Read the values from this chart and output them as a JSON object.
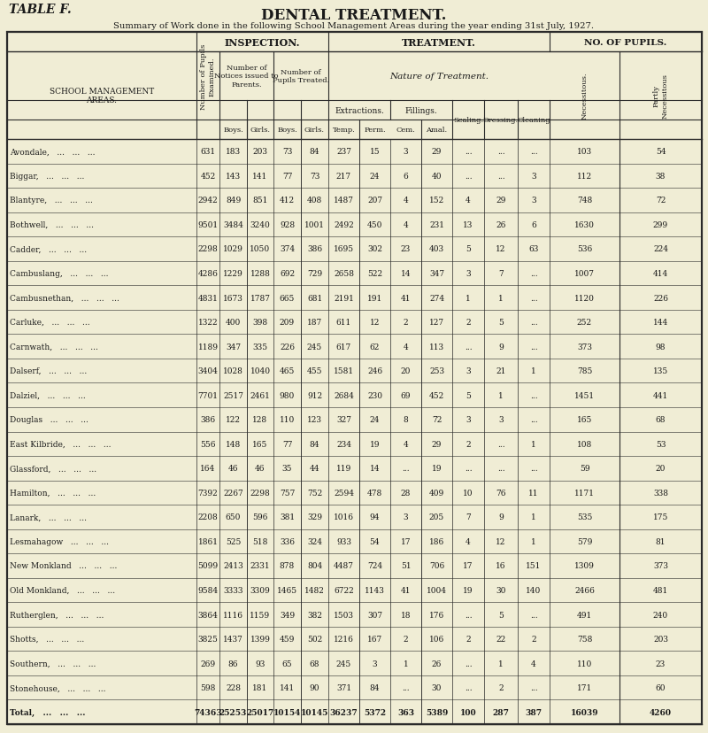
{
  "title1": "TABLE F.",
  "title2": "DENTAL TREATMENT.",
  "subtitle": "Summary of Work done in the following School Management Areas during the year ending 31st July, 1927.",
  "bg_color": "#f0edd5",
  "line_color": "#2a2a2a",
  "rows": [
    [
      "Avondale,   ...   ...   ...",
      "631",
      "183",
      "203",
      "73",
      "84",
      "237",
      "15",
      "3",
      "29",
      "...",
      "...",
      "...",
      "103",
      "54"
    ],
    [
      "Biggar,   ...   ...   ...",
      "452",
      "143",
      "141",
      "77",
      "73",
      "217",
      "24",
      "6",
      "40",
      "...",
      "...",
      "3",
      "112",
      "38"
    ],
    [
      "Blantyre,   ...   ...   ...",
      "2942",
      "849",
      "851",
      "412",
      "408",
      "1487",
      "207",
      "4",
      "152",
      "4",
      "29",
      "3",
      "748",
      "72"
    ],
    [
      "Bothwell,   ...   ...   ...",
      "9501",
      "3484",
      "3240",
      "928",
      "1001",
      "2492",
      "450",
      "4",
      "231",
      "13",
      "26",
      "6",
      "1630",
      "299"
    ],
    [
      "Cadder,   ...   ...   ...",
      "2298",
      "1029",
      "1050",
      "374",
      "386",
      "1695",
      "302",
      "23",
      "403",
      "5",
      "12",
      "63",
      "536",
      "224"
    ],
    [
      "Cambuslang,   ...   ...   ...",
      "4286",
      "1229",
      "1288",
      "692",
      "729",
      "2658",
      "522",
      "14",
      "347",
      "3",
      "7",
      "...",
      "1007",
      "414"
    ],
    [
      "Cambusnethan,   ...   ...   ...",
      "4831",
      "1673",
      "1787",
      "665",
      "681",
      "2191",
      "191",
      "41",
      "274",
      "1",
      "1",
      "...",
      "1120",
      "226"
    ],
    [
      "Carluke,   ...   ...   ...",
      "1322",
      "400",
      "398",
      "209",
      "187",
      "611",
      "12",
      "2",
      "127",
      "2",
      "5",
      "...",
      "252",
      "144"
    ],
    [
      "Carnwath,   ...   ...   ...",
      "1189",
      "347",
      "335",
      "226",
      "245",
      "617",
      "62",
      "4",
      "113",
      "...",
      "9",
      "...",
      "373",
      "98"
    ],
    [
      "Dalserf,   ...   ...   ...",
      "3404",
      "1028",
      "1040",
      "465",
      "455",
      "1581",
      "246",
      "20",
      "253",
      "3",
      "21",
      "1",
      "785",
      "135"
    ],
    [
      "Dalziel,   ...   ...   ...",
      "7701",
      "2517",
      "2461",
      "980",
      "912",
      "2684",
      "230",
      "69",
      "452",
      "5",
      "1",
      "...",
      "1451",
      "441"
    ],
    [
      "Douglas   ...   ...   ...",
      "386",
      "122",
      "128",
      "110",
      "123",
      "327",
      "24",
      "8",
      "72",
      "3",
      "3",
      "...",
      "165",
      "68"
    ],
    [
      "East Kilbride,   ...   ...   ...",
      "556",
      "148",
      "165",
      "77",
      "84",
      "234",
      "19",
      "4",
      "29",
      "2",
      "...",
      "1",
      "108",
      "53"
    ],
    [
      "Glassford,   ...   ...   ...",
      "164",
      "46",
      "46",
      "35",
      "44",
      "119",
      "14",
      "...",
      "19",
      "...",
      "...",
      "...",
      "59",
      "20"
    ],
    [
      "Hamilton,   ...   ...   ...",
      "7392",
      "2267",
      "2298",
      "757",
      "752",
      "2594",
      "478",
      "28",
      "409",
      "10",
      "76",
      "11",
      "1171",
      "338"
    ],
    [
      "Lanark,   ...   ...   ...",
      "2208",
      "650",
      "596",
      "381",
      "329",
      "1016",
      "94",
      "3",
      "205",
      "7",
      "9",
      "1",
      "535",
      "175"
    ],
    [
      "Lesmahagow   ...   ...   ...",
      "1861",
      "525",
      "518",
      "336",
      "324",
      "933",
      "54",
      "17",
      "186",
      "4",
      "12",
      "1",
      "579",
      "81"
    ],
    [
      "New Monkland   ...   ...   ...",
      "5099",
      "2413",
      "2331",
      "878",
      "804",
      "4487",
      "724",
      "51",
      "706",
      "17",
      "16",
      "151",
      "1309",
      "373"
    ],
    [
      "Old Monkland,   ...   ...   ...",
      "9584",
      "3333",
      "3309",
      "1465",
      "1482",
      "6722",
      "1143",
      "41",
      "1004",
      "19",
      "30",
      "140",
      "2466",
      "481"
    ],
    [
      "Rutherglen,   ...   ...   ...",
      "3864",
      "1116",
      "1159",
      "349",
      "382",
      "1503",
      "307",
      "18",
      "176",
      "...",
      "5",
      "...",
      "491",
      "240"
    ],
    [
      "Shotts,   ...   ...   ...",
      "3825",
      "1437",
      "1399",
      "459",
      "502",
      "1216",
      "167",
      "2",
      "106",
      "2",
      "22",
      "2",
      "758",
      "203"
    ],
    [
      "Southern,   ...   ...   ...",
      "269",
      "86",
      "93",
      "65",
      "68",
      "245",
      "3",
      "1",
      "26",
      "...",
      "1",
      "4",
      "110",
      "23"
    ],
    [
      "Stonehouse,   ...   ...   ...",
      "598",
      "228",
      "181",
      "141",
      "90",
      "371",
      "84",
      "...",
      "30",
      "...",
      "2",
      "...",
      "171",
      "60"
    ],
    [
      "Total,   ...   ...   ...",
      "74363",
      "25253",
      "25017",
      "10154",
      "10145",
      "36237",
      "5372",
      "363",
      "5389",
      "100",
      "287",
      "387",
      "16039",
      "4260"
    ]
  ]
}
